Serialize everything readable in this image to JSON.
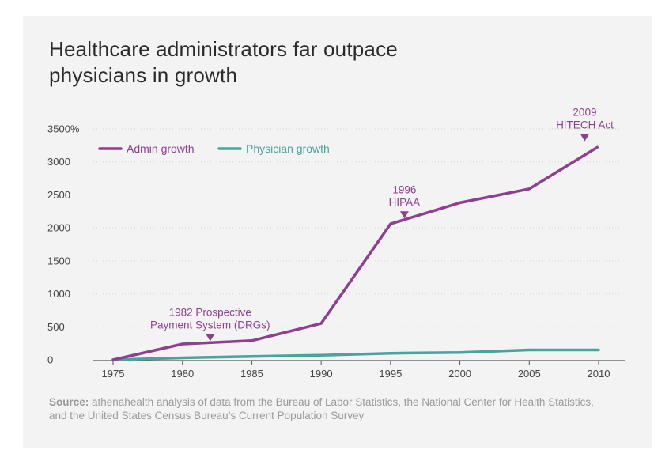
{
  "title_lines": [
    "Healthcare administrators far outpace",
    "physicians in growth"
  ],
  "source_label": "Source:",
  "source_text": " athenahealth analysis of data from the Bureau of Labor Statistics, the National Center for Health Statistics, and the United States Census Bureau’s Current Population Survey",
  "chart_data": {
    "type": "line",
    "title": "Healthcare administrators far outpace physicians in growth",
    "x": [
      1975,
      1980,
      1985,
      1990,
      1995,
      2000,
      2005,
      2010
    ],
    "ylim": [
      0,
      3500
    ],
    "yticks": [
      0,
      500,
      1000,
      1500,
      2000,
      2500,
      3000,
      3500
    ],
    "ytick_labels": [
      "0",
      "500",
      "1000",
      "1500",
      "2000",
      "2500",
      "3000",
      "3500%"
    ],
    "xticks": [
      1975,
      1980,
      1985,
      1990,
      1995,
      2000,
      2005,
      2010
    ],
    "grid": "horizontal dotted",
    "legend_placement": "top-left",
    "series": [
      {
        "name": "Admin growth",
        "color": "#8e3f8f",
        "points": [
          [
            1975,
            0
          ],
          [
            1980,
            240
          ],
          [
            1985,
            290
          ],
          [
            1990,
            550
          ],
          [
            1995,
            2060
          ],
          [
            2000,
            2380
          ],
          [
            2005,
            2590
          ],
          [
            2009.9,
            3220
          ]
        ]
      },
      {
        "name": "Physician growth",
        "color": "#4aa39e",
        "points": [
          [
            1975,
            0
          ],
          [
            1980,
            30
          ],
          [
            1985,
            50
          ],
          [
            1990,
            70
          ],
          [
            1995,
            100
          ],
          [
            2000,
            110
          ],
          [
            2005,
            150
          ],
          [
            2010,
            150
          ]
        ]
      }
    ],
    "annotations": [
      {
        "lines": [
          "1982 Prospective",
          "Payment System (DRGs)"
        ],
        "x": 1982,
        "y": 270
      },
      {
        "lines": [
          "1996",
          "HIPAA"
        ],
        "x": 1996,
        "y": 2130
      },
      {
        "lines": [
          "2009",
          "HITECH Act"
        ],
        "x": 2009,
        "y": 3300
      }
    ]
  }
}
